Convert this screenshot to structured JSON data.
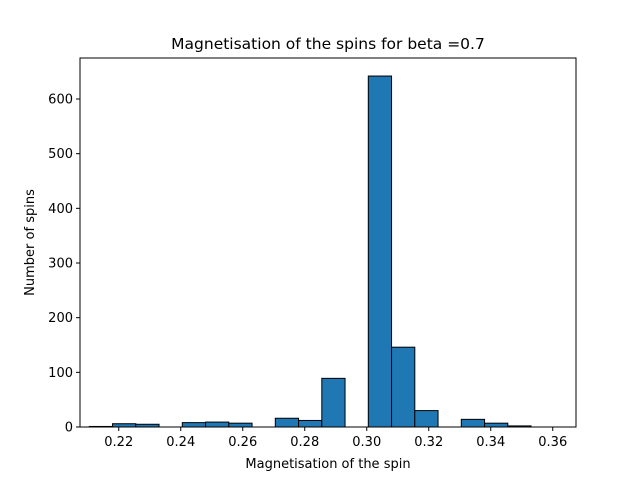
{
  "chart_data": {
    "type": "bar",
    "title": "Magnetisation of the spins for beta =0.7",
    "xlabel": "Magnetisation of the spin",
    "ylabel": "Number of spins",
    "xlim": [
      0.2075,
      0.3675
    ],
    "ylim": [
      0,
      675
    ],
    "xticks": [
      "0.22",
      "0.24",
      "0.26",
      "0.28",
      "0.30",
      "0.32",
      "0.34",
      "0.36"
    ],
    "yticks": [
      "0",
      "100",
      "200",
      "300",
      "400",
      "500",
      "600"
    ],
    "bin_edges": [
      0.2105,
      0.218,
      0.2255,
      0.233,
      0.2405,
      0.248,
      0.2555,
      0.263,
      0.2705,
      0.278,
      0.2855,
      0.293,
      0.3005,
      0.308,
      0.3155,
      0.323,
      0.3305,
      0.338,
      0.3455,
      0.353,
      0.3605
    ],
    "values": [
      1,
      6,
      5,
      0,
      8,
      9,
      7,
      0,
      16,
      12,
      89,
      0,
      642,
      146,
      30,
      0,
      14,
      7,
      2,
      0
    ],
    "bar_color": "#1f77b4",
    "edge_color": "#000000",
    "grid": false,
    "legend": "none"
  }
}
